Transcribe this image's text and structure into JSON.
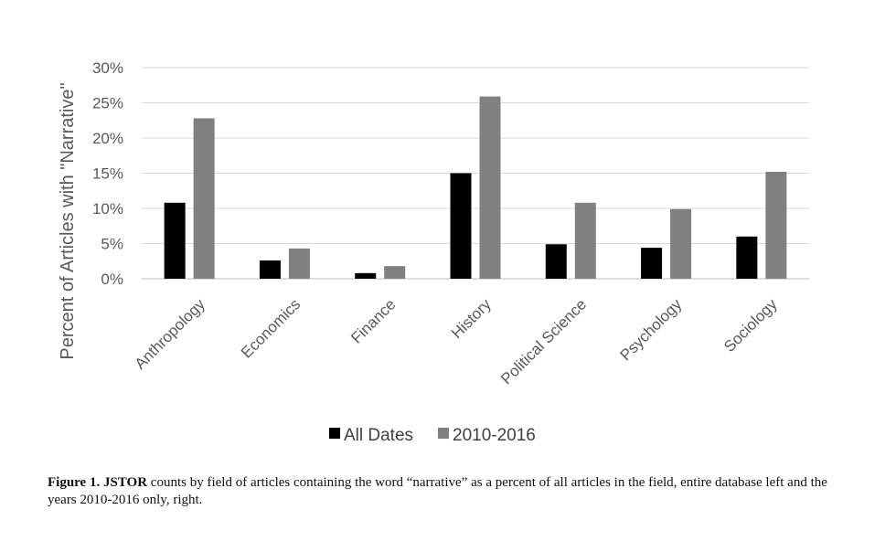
{
  "chart_data": {
    "type": "bar",
    "title": "",
    "ylabel": "Percent of Articles with \"Narrative\"",
    "xlabel": "",
    "ylim": [
      0,
      30
    ],
    "yticks": [
      "0%",
      "5%",
      "10%",
      "15%",
      "20%",
      "25%",
      "30%"
    ],
    "categories": [
      "Anthropology",
      "Economics",
      "Finance",
      "History",
      "Political Science",
      "Psychology",
      "Sociology"
    ],
    "series": [
      {
        "name": "All Dates",
        "color": "#000000",
        "values": [
          10.8,
          2.6,
          0.8,
          15.0,
          4.9,
          4.4,
          6.0
        ]
      },
      {
        "name": "2010-2016",
        "color": "#808080",
        "values": [
          22.8,
          4.3,
          1.8,
          25.9,
          10.8,
          9.9,
          15.2
        ]
      }
    ],
    "grid": true,
    "legend": "bottom"
  },
  "caption": {
    "lead": "Figure 1. JSTOR",
    "text": " counts by field of articles containing the word “narrative” as a percent of all articles in the field, entire database left and the years 2010-2016 only, right."
  }
}
